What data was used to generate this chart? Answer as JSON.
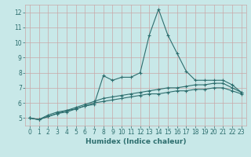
{
  "xlabel": "Humidex (Indice chaleur)",
  "x": [
    0,
    1,
    2,
    3,
    4,
    5,
    6,
    7,
    8,
    9,
    10,
    11,
    12,
    13,
    14,
    15,
    16,
    17,
    18,
    19,
    20,
    21,
    22,
    23
  ],
  "line1": [
    5.0,
    4.9,
    5.2,
    5.4,
    5.5,
    5.6,
    5.8,
    5.9,
    7.8,
    7.5,
    7.7,
    7.7,
    8.0,
    10.5,
    12.2,
    10.5,
    9.3,
    8.1,
    7.5,
    7.5,
    7.5,
    7.5,
    7.2,
    6.7
  ],
  "line2": [
    5.0,
    4.9,
    5.1,
    5.3,
    5.5,
    5.7,
    5.9,
    6.1,
    6.3,
    6.4,
    6.5,
    6.6,
    6.7,
    6.8,
    6.9,
    7.0,
    7.0,
    7.1,
    7.2,
    7.2,
    7.3,
    7.3,
    7.0,
    6.7
  ],
  "line3": [
    5.0,
    4.9,
    5.1,
    5.3,
    5.4,
    5.6,
    5.8,
    6.0,
    6.1,
    6.2,
    6.3,
    6.4,
    6.5,
    6.6,
    6.6,
    6.7,
    6.8,
    6.8,
    6.9,
    6.9,
    7.0,
    7.0,
    6.8,
    6.6
  ],
  "bg_color": "#c8e8e8",
  "grid_color": "#c8a8a8",
  "line_color": "#2d6e6e",
  "tick_color": "#2d6e6e",
  "xlim": [
    -0.5,
    23.5
  ],
  "ylim": [
    4.5,
    12.5
  ],
  "yticks": [
    5,
    6,
    7,
    8,
    9,
    10,
    11,
    12
  ],
  "xlabel_fontsize": 6.5,
  "tick_fontsize": 5.5
}
